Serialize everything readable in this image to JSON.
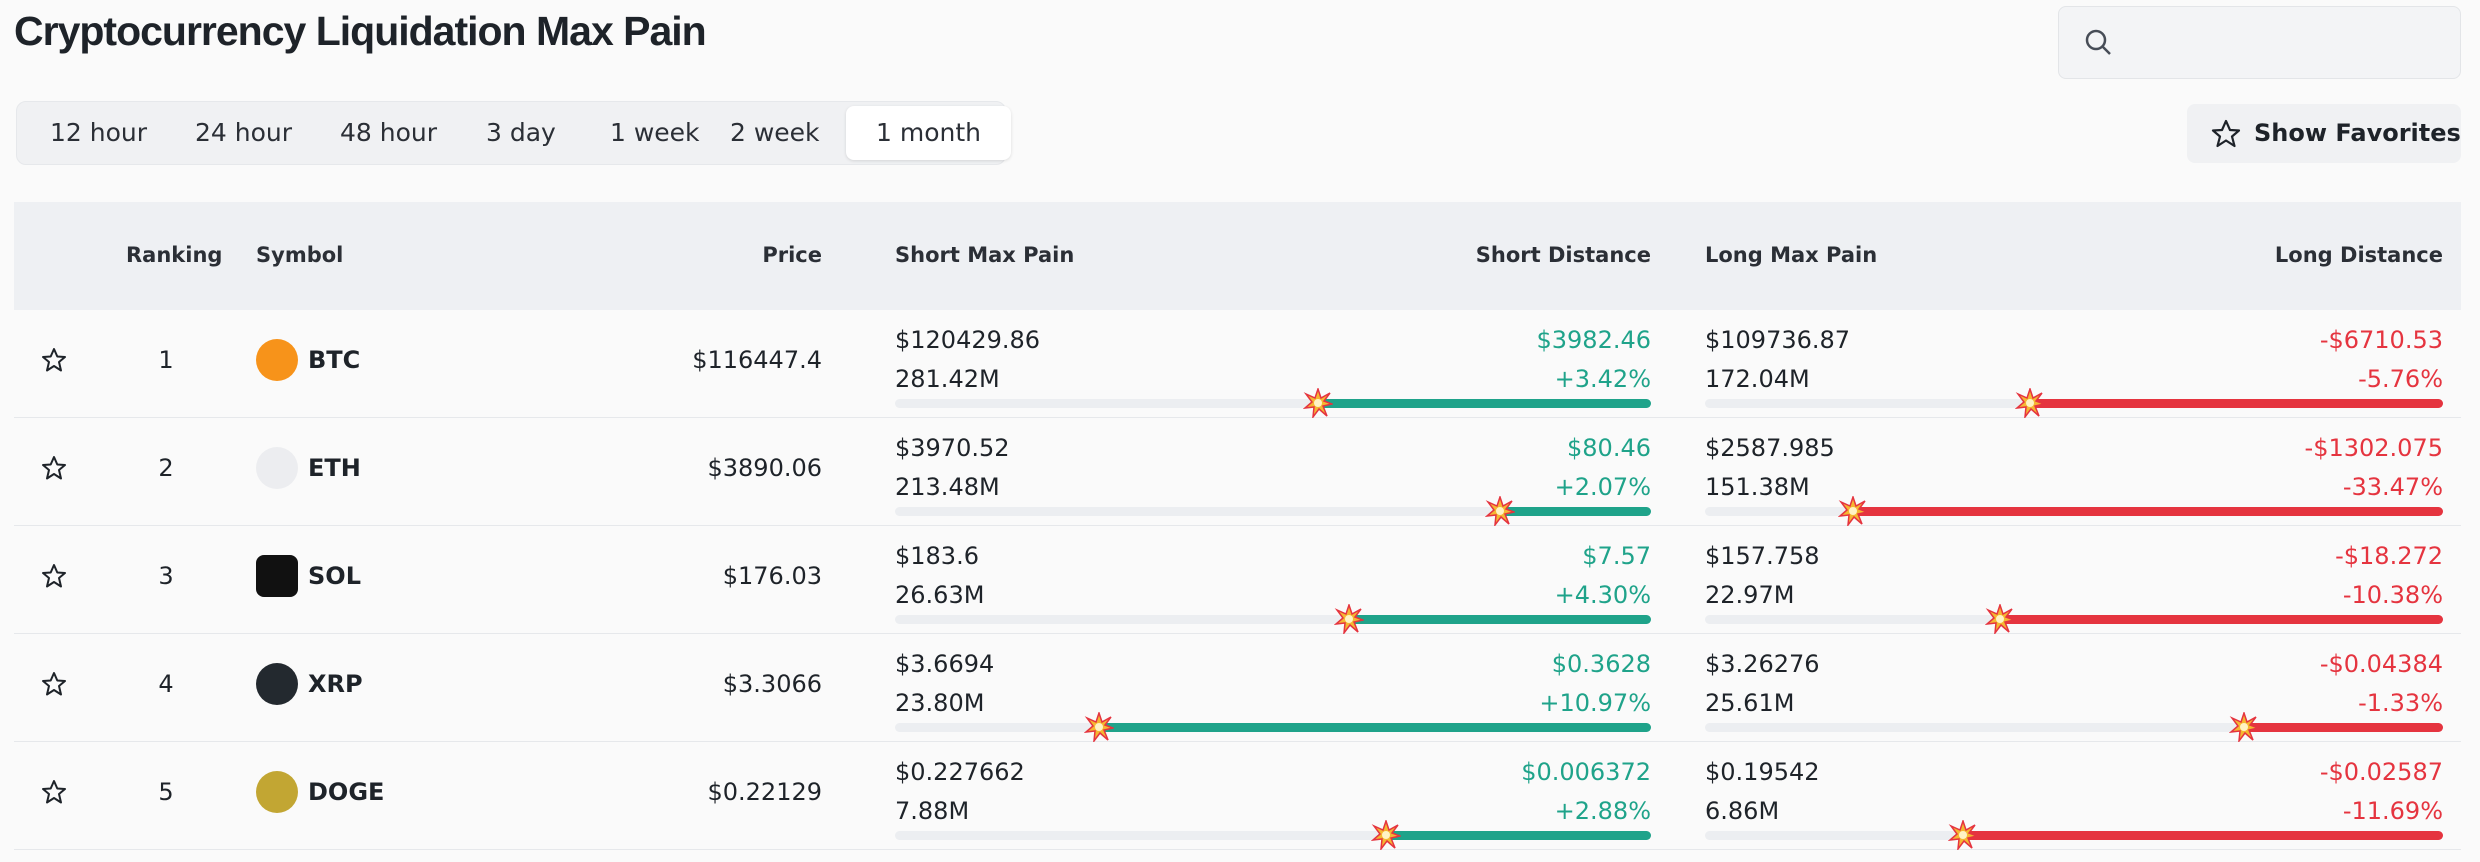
{
  "header": {
    "title": "Cryptocurrency Liquidation Max Pain",
    "show_favorites": "Show Favorites"
  },
  "tabs": [
    "12 hour",
    "24 hour",
    "48 hour",
    "3 day",
    "1 week",
    "2 week",
    "1 month"
  ],
  "active_tab": 6,
  "table": {
    "headers": [
      "Ranking",
      "Symbol",
      "Price",
      "Short Max Pain",
      "Short Distance",
      "Long Max Pain",
      "Long Distance"
    ],
    "rows": [
      {
        "ranking": "1",
        "symbol": "BTC",
        "icon_color": "#f7931a",
        "price": "$116447.4",
        "short_max_pain": "$120429.86",
        "short_amount": "281.42M",
        "short_distance": "$3982.46",
        "short_pct": "+3.42%",
        "short_bar": 44,
        "long_max_pain": "$109736.87",
        "long_amount": "172.04M",
        "long_distance": "-$6710.53",
        "long_pct": "-5.76%",
        "long_bar": 56
      },
      {
        "ranking": "2",
        "symbol": "ETH",
        "icon_color": "#ecedf0",
        "price": "$3890.06",
        "short_max_pain": "$3970.52",
        "short_amount": "213.48M",
        "short_distance": "$80.46",
        "short_pct": "+2.07%",
        "short_bar": 20,
        "long_max_pain": "$2587.985",
        "long_amount": "151.38M",
        "long_distance": "-$1302.075",
        "long_pct": "-33.47%",
        "long_bar": 80
      },
      {
        "ranking": "3",
        "symbol": "SOL",
        "icon_color": "#111111",
        "price": "$176.03",
        "short_max_pain": "$183.6",
        "short_amount": "26.63M",
        "short_distance": "$7.57",
        "short_pct": "+4.30%",
        "short_bar": 40,
        "long_max_pain": "$157.758",
        "long_amount": "22.97M",
        "long_distance": "-$18.272",
        "long_pct": "-10.38%",
        "long_bar": 60
      },
      {
        "ranking": "4",
        "symbol": "XRP",
        "icon_color": "#23292f",
        "price": "$3.3066",
        "short_max_pain": "$3.6694",
        "short_amount": "23.80M",
        "short_distance": "$0.3628",
        "short_pct": "+10.97%",
        "short_bar": 73,
        "long_max_pain": "$3.26276",
        "long_amount": "25.61M",
        "long_distance": "-$0.04384",
        "long_pct": "-1.33%",
        "long_bar": 27
      },
      {
        "ranking": "5",
        "symbol": "DOGE",
        "icon_color": "#c2a633",
        "price": "$0.22129",
        "short_max_pain": "$0.227662",
        "short_amount": "7.88M",
        "short_distance": "$0.006372",
        "short_pct": "+2.88%",
        "short_bar": 35,
        "long_max_pain": "$0.19542",
        "long_amount": "6.86M",
        "long_distance": "-$0.02587",
        "long_pct": "-11.69%",
        "long_bar": 65
      }
    ]
  }
}
